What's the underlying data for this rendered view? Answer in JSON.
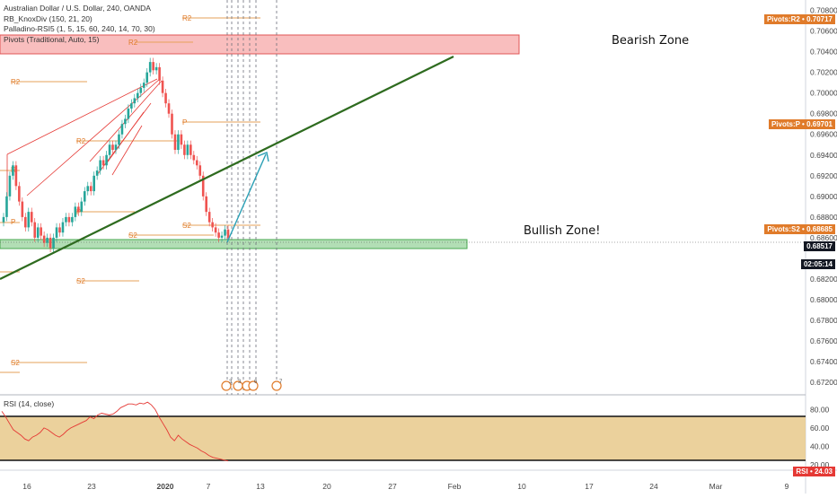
{
  "legend": {
    "title": "Australian Dollar / U.S. Dollar, 240, OANDA",
    "ind1": "RB_KnoxDiv (150, 21, 20)",
    "ind2": "Palladino-RSI5 (1, 5, 15, 60, 240, 14, 70, 30)",
    "ind3": "Pivots (Traditional, Auto, 15)"
  },
  "zones": {
    "bearish": "Bearish Zone",
    "bullish": "Bullish Zone!"
  },
  "badges": [
    {
      "label": "Pivots:R2 • 0.70717",
      "value": 0.70717,
      "color": "#e07b2a"
    },
    {
      "label": "Pivots:P • 0.69701",
      "value": 0.69701,
      "color": "#e07b2a"
    },
    {
      "label": "Pivots:S2 • 0.68685",
      "value": 0.68685,
      "color": "#e07b2a"
    },
    {
      "label": "0.68517",
      "value": 0.68517,
      "color": "#131722"
    },
    {
      "label": "02:05:14",
      "value": 0.6834,
      "color": "#131722"
    }
  ],
  "rsi": {
    "title": "RSI (14, close)",
    "badge": "RSI • 24.03",
    "ticks": [
      "80.00",
      "60.00",
      "40.00",
      "20.00"
    ],
    "levels": [
      80,
      60,
      40,
      20
    ]
  },
  "chart_data": {
    "type": "candlestick",
    "symbol": "Australian Dollar / U.S. Dollar, 240, OANDA",
    "ylim": [
      0.6708,
      0.709
    ],
    "y_ticks": [
      "0.70800",
      "0.70600",
      "0.70400",
      "0.70200",
      "0.70000",
      "0.69800",
      "0.69600",
      "0.69400",
      "0.69200",
      "0.69000",
      "0.68800",
      "0.68600",
      "0.68200",
      "0.68000",
      "0.67800",
      "0.67600",
      "0.67400",
      "0.67200"
    ],
    "x_ticks": [
      "16",
      "23",
      "2020",
      "7",
      "13",
      "20",
      "27",
      "Feb",
      "10",
      "17",
      "24",
      "Mar",
      "9"
    ],
    "series": [
      {
        "values": [
          0.688,
          0.69,
          0.692,
          0.693,
          0.691,
          0.6895,
          0.688,
          0.687,
          0.6885,
          0.6875,
          0.686,
          0.687,
          0.6862,
          0.6855,
          0.686,
          0.685,
          0.686,
          0.687,
          0.6865,
          0.6875,
          0.688,
          0.6875,
          0.688,
          0.689,
          0.6885,
          0.6895,
          0.6905,
          0.691,
          0.6905,
          0.692,
          0.6925,
          0.6935,
          0.693,
          0.694,
          0.695,
          0.6945,
          0.695,
          0.696,
          0.697,
          0.6975,
          0.6985,
          0.699,
          0.6995,
          0.7,
          0.7005,
          0.701,
          0.702,
          0.703,
          0.7022,
          0.7025,
          0.7012,
          0.7,
          0.699,
          0.698,
          0.696,
          0.6945,
          0.696,
          0.695,
          0.694,
          0.695,
          0.694,
          0.6935,
          0.693,
          0.692,
          0.69,
          0.6885,
          0.6875,
          0.687,
          0.6865,
          0.686,
          0.6862,
          0.6868,
          0.686
        ]
      }
    ],
    "rsi_values": [
      78,
      72,
      65,
      58,
      55,
      52,
      48,
      46,
      50,
      52,
      55,
      60,
      58,
      55,
      52,
      50,
      53,
      57,
      60,
      62,
      64,
      66,
      68,
      72,
      70,
      74,
      76,
      75,
      74,
      75,
      78,
      82,
      84,
      86,
      86,
      85,
      87,
      86,
      88,
      85,
      80,
      72,
      65,
      58,
      50,
      46,
      52,
      48,
      45,
      42,
      40,
      38,
      35,
      33,
      30,
      28,
      27,
      26,
      25,
      24.03
    ]
  }
}
